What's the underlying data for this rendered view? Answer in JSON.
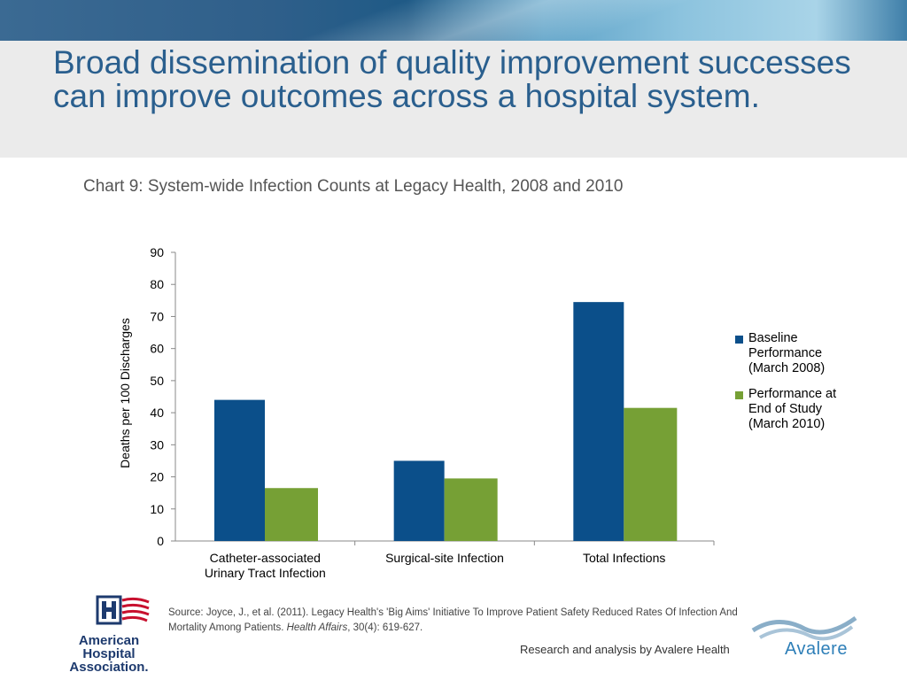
{
  "slide": {
    "title": "Broad dissemination of quality improvement successes can improve outcomes across a hospital system."
  },
  "source": {
    "prefix": "Source: Joyce, J., et al. (2011). Legacy Health's 'Big Aims' Initiative To Improve Patient Safety Reduced Rates Of Infection And Mortality Among Patients. ",
    "journal": "Health Affairs",
    "suffix": ", 30(4): 619-627."
  },
  "credit": "Research and analysis by Avalere Health",
  "logos": {
    "aha": "American Hospital Association.",
    "avalere": "Avalere"
  },
  "colors": {
    "baseline": "#0b4f8a",
    "end_of_study": "#76a035",
    "title": "#2a5f8e"
  },
  "chart_data": {
    "type": "bar",
    "title": "Chart 9: System-wide Infection Counts at Legacy Health, 2008 and 2010",
    "xlabel": "",
    "ylabel": "Deaths per 100 Discharges",
    "ylim": [
      0,
      90
    ],
    "yticks": [
      "0",
      "10",
      "20",
      "30",
      "40",
      "50",
      "60",
      "70",
      "80",
      "90"
    ],
    "categories": [
      [
        "Catheter-associated",
        "Urinary Tract Infection"
      ],
      [
        "Surgical-site Infection"
      ],
      [
        "Total Infections"
      ]
    ],
    "series": [
      {
        "name": "Baseline Performance (March 2008)",
        "name_lines": [
          "Baseline",
          "Performance",
          "(March 2008)"
        ],
        "values": [
          44,
          25,
          74.5
        ]
      },
      {
        "name": "Performance at End of Study (March 2010)",
        "name_lines": [
          "Performance at",
          "End of Study",
          "(March 2010)"
        ],
        "values": [
          16.5,
          19.5,
          41.5
        ]
      }
    ],
    "grid": false,
    "legend_position": "right"
  }
}
